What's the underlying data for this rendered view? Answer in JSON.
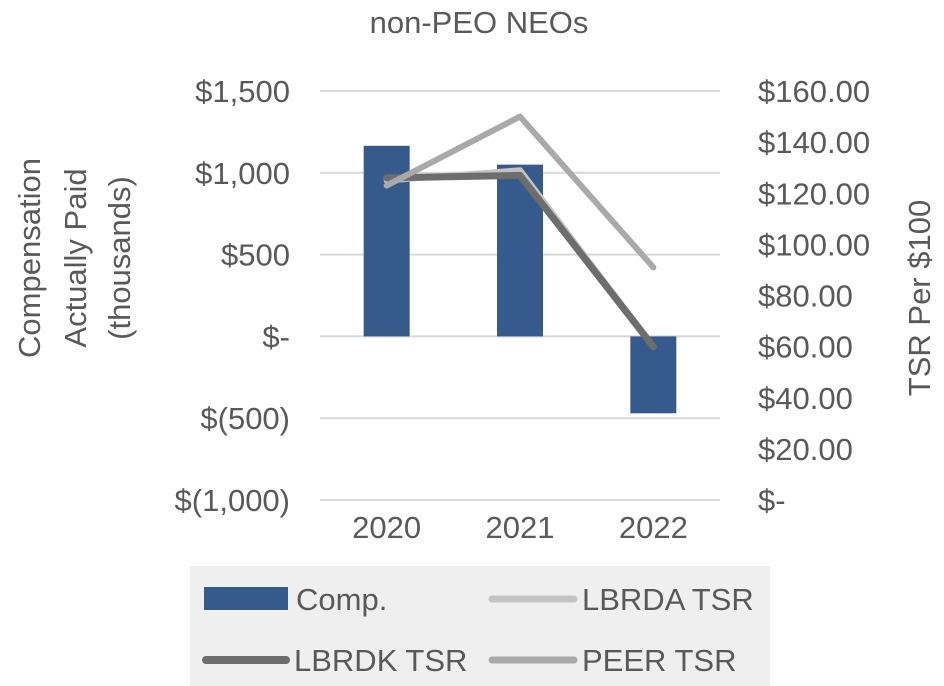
{
  "chart_data": {
    "type": "bar",
    "title": "non-PEO NEOs",
    "categories": [
      "2020",
      "2021",
      "2022"
    ],
    "y_left": {
      "label_lines": [
        "Compensation",
        "Actually Paid",
        "(thousands)"
      ],
      "min": -1000,
      "max": 1500,
      "ticks": [
        {
          "value": 1500,
          "label": "$1,500"
        },
        {
          "value": 1000,
          "label": "$1,000"
        },
        {
          "value": 500,
          "label": "$500"
        },
        {
          "value": 0,
          "label": "$-"
        },
        {
          "value": -500,
          "label": "$(500)"
        },
        {
          "value": -1000,
          "label": "$(1,000)"
        }
      ]
    },
    "y_right": {
      "label": "TSR Per $100",
      "min": 0,
      "max": 160,
      "ticks": [
        {
          "value": 160,
          "label": "$160.00"
        },
        {
          "value": 140,
          "label": "$140.00"
        },
        {
          "value": 120,
          "label": "$120.00"
        },
        {
          "value": 100,
          "label": "$100.00"
        },
        {
          "value": 80,
          "label": "$80.00"
        },
        {
          "value": 60,
          "label": "$60.00"
        },
        {
          "value": 40,
          "label": "$40.00"
        },
        {
          "value": 20,
          "label": "$20.00"
        },
        {
          "value": 0,
          "label": "$-"
        }
      ]
    },
    "bars": {
      "name": "Comp.",
      "color": "#365a8c",
      "values": [
        1165,
        1050,
        -470
      ]
    },
    "lines": [
      {
        "name": "LBRDA TSR",
        "color": "#c4c4c4",
        "width": 6,
        "values": [
          125,
          129,
          60
        ]
      },
      {
        "name": "LBRDK TSR",
        "color": "#6d6d6d",
        "width": 7,
        "values": [
          126,
          127,
          60
        ]
      },
      {
        "name": "PEER TSR",
        "color": "#a9a9a9",
        "width": 6,
        "values": [
          123,
          150,
          91
        ]
      }
    ],
    "grid": true,
    "legend": {
      "position": "bottom",
      "background": "#efeff0",
      "entries": [
        "Comp.",
        "LBRDA TSR",
        "LBRDK TSR",
        "PEER TSR"
      ]
    }
  }
}
